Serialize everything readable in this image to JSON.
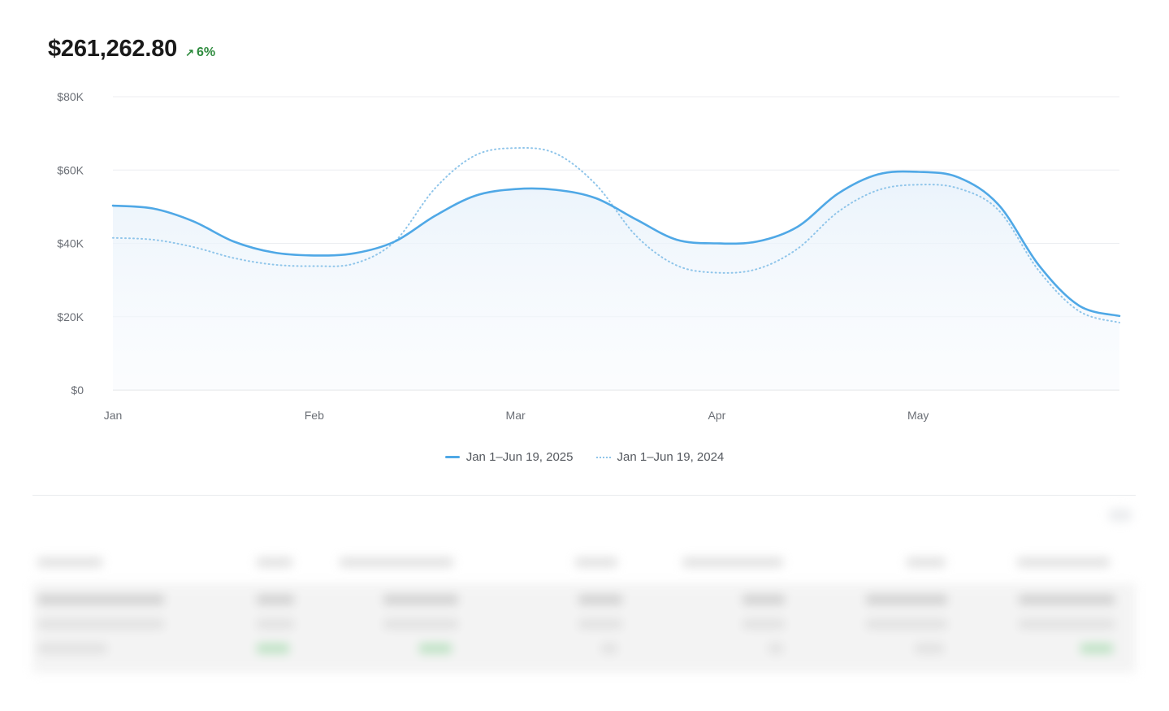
{
  "summary": {
    "total": "$261,262.80",
    "delta": "6%",
    "delta_icon": "arrow-up-right-icon",
    "delta_color": "#2e8b3e"
  },
  "chart_data": {
    "type": "line",
    "x": [
      1,
      1.2,
      1.4,
      1.6,
      1.8,
      2,
      2.2,
      2.4,
      2.6,
      2.8,
      3,
      3.2,
      3.4,
      3.6,
      3.8,
      4,
      4.2,
      4.4,
      4.6,
      4.8,
      5,
      5.2,
      5.4,
      5.6,
      5.8,
      6
    ],
    "x_ticks": [
      1,
      2,
      3,
      4,
      5
    ],
    "x_tick_labels": [
      "Jan",
      "Feb",
      "Mar",
      "Apr",
      "May"
    ],
    "xlim": [
      1,
      6
    ],
    "y_ticks": [
      0,
      20000,
      40000,
      60000,
      80000
    ],
    "y_tick_labels": [
      "$0",
      "$20K",
      "$40K",
      "$60K",
      "$80K"
    ],
    "ylim": [
      0,
      80000
    ],
    "grid": true,
    "legend_position": "bottom-center",
    "series": [
      {
        "name": "Jan 1–Jun 19, 2025",
        "style": "solid",
        "color": "#4fa8e6",
        "area_fill": true,
        "values": [
          50300,
          49500,
          46000,
          40500,
          37500,
          36700,
          37300,
          40500,
          47500,
          53000,
          54800,
          54600,
          52300,
          46500,
          41000,
          40000,
          40500,
          44500,
          53500,
          58800,
          59500,
          58000,
          50500,
          34000,
          23000,
          20200
        ]
      },
      {
        "name": "Jan 1–Jun 19, 2024",
        "style": "dotted",
        "color": "#8fc5ea",
        "area_fill": false,
        "values": [
          41500,
          41000,
          39000,
          36000,
          34200,
          33800,
          34500,
          40500,
          55000,
          64000,
          66000,
          64500,
          56000,
          42000,
          34000,
          32000,
          33000,
          38500,
          48500,
          54500,
          56000,
          55000,
          49000,
          32500,
          21500,
          18400
        ]
      }
    ]
  },
  "legend": {
    "current_label": "Jan 1–Jun 19, 2025",
    "previous_label": "Jan 1–Jun 19, 2024"
  }
}
